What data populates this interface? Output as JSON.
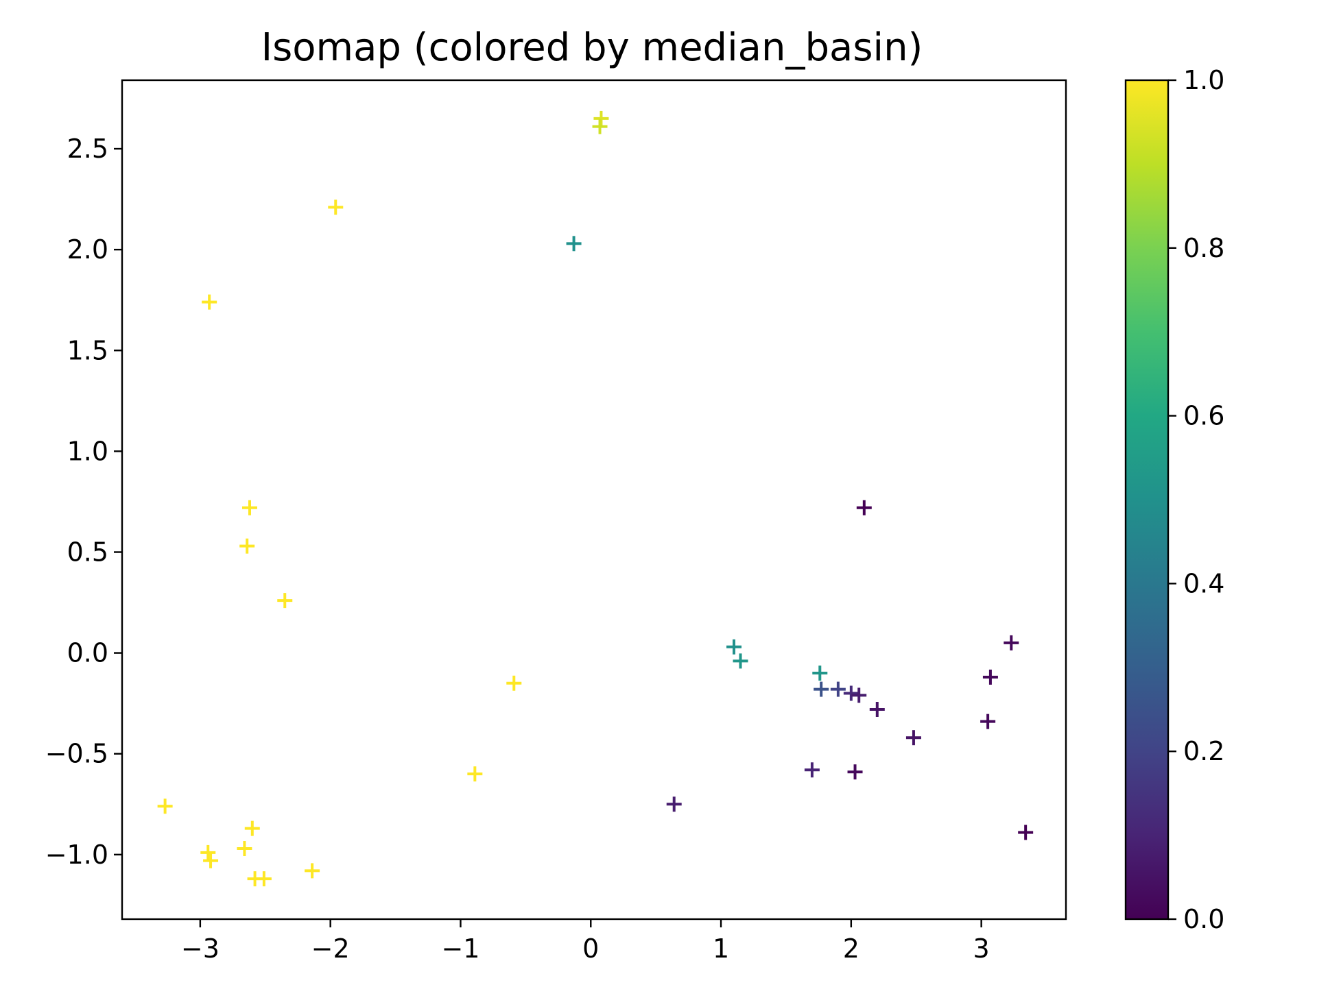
{
  "chart_data": {
    "type": "scatter",
    "title": "Isomap (colored by median_basin)",
    "xlabel": "",
    "ylabel": "",
    "xlim": [
      -3.6,
      3.65
    ],
    "ylim": [
      -1.32,
      2.84
    ],
    "xticks": [
      -3,
      -2,
      -1,
      0,
      1,
      2,
      3
    ],
    "xtick_labels": [
      "−3",
      "−2",
      "−1",
      "0",
      "1",
      "2",
      "3"
    ],
    "yticks": [
      -1.0,
      -0.5,
      0.0,
      0.5,
      1.0,
      1.5,
      2.0,
      2.5
    ],
    "ytick_labels": [
      "−1.0",
      "−0.5",
      "0.0",
      "0.5",
      "1.0",
      "1.5",
      "2.0",
      "2.5"
    ],
    "marker": "+",
    "grid": false,
    "colormap": "viridis",
    "colorbar": {
      "range": [
        0.0,
        1.0
      ],
      "ticks": [
        0.0,
        0.2,
        0.4,
        0.6,
        0.8,
        1.0
      ],
      "tick_labels": [
        "0.0",
        "0.2",
        "0.4",
        "0.6",
        "0.8",
        "1.0"
      ]
    },
    "points": [
      {
        "x": 0.08,
        "y": 2.65,
        "c": 0.95
      },
      {
        "x": 0.07,
        "y": 2.61,
        "c": 0.93
      },
      {
        "x": -1.96,
        "y": 2.21,
        "c": 1.0
      },
      {
        "x": -0.13,
        "y": 2.03,
        "c": 0.5
      },
      {
        "x": -2.93,
        "y": 1.74,
        "c": 1.0
      },
      {
        "x": -2.62,
        "y": 0.72,
        "c": 1.0
      },
      {
        "x": -2.64,
        "y": 0.53,
        "c": 1.0
      },
      {
        "x": -2.35,
        "y": 0.26,
        "c": 1.0
      },
      {
        "x": -0.59,
        "y": -0.15,
        "c": 1.0
      },
      {
        "x": -0.89,
        "y": -0.6,
        "c": 1.0
      },
      {
        "x": -3.27,
        "y": -0.76,
        "c": 1.0
      },
      {
        "x": -2.6,
        "y": -0.87,
        "c": 1.0
      },
      {
        "x": -2.66,
        "y": -0.97,
        "c": 1.0
      },
      {
        "x": -2.94,
        "y": -0.99,
        "c": 1.0
      },
      {
        "x": -2.92,
        "y": -1.03,
        "c": 1.0
      },
      {
        "x": -2.14,
        "y": -1.08,
        "c": 1.0
      },
      {
        "x": -2.58,
        "y": -1.12,
        "c": 1.0
      },
      {
        "x": -2.51,
        "y": -1.12,
        "c": 1.0
      },
      {
        "x": 2.1,
        "y": 0.72,
        "c": 0.0
      },
      {
        "x": 1.1,
        "y": 0.03,
        "c": 0.5
      },
      {
        "x": 1.15,
        "y": -0.04,
        "c": 0.52
      },
      {
        "x": 1.76,
        "y": -0.1,
        "c": 0.52
      },
      {
        "x": 1.77,
        "y": -0.18,
        "c": 0.25
      },
      {
        "x": 1.9,
        "y": -0.18,
        "c": 0.2
      },
      {
        "x": 2.0,
        "y": -0.2,
        "c": 0.12
      },
      {
        "x": 2.06,
        "y": -0.21,
        "c": 0.08
      },
      {
        "x": 2.2,
        "y": -0.28,
        "c": 0.05
      },
      {
        "x": 2.48,
        "y": -0.42,
        "c": 0.05
      },
      {
        "x": 3.05,
        "y": -0.34,
        "c": 0.02
      },
      {
        "x": 3.07,
        "y": -0.12,
        "c": 0.02
      },
      {
        "x": 3.23,
        "y": 0.05,
        "c": 0.02
      },
      {
        "x": 1.7,
        "y": -0.58,
        "c": 0.1
      },
      {
        "x": 2.03,
        "y": -0.59,
        "c": 0.02
      },
      {
        "x": 0.64,
        "y": -0.75,
        "c": 0.08
      },
      {
        "x": 3.34,
        "y": -0.89,
        "c": 0.0
      }
    ]
  }
}
